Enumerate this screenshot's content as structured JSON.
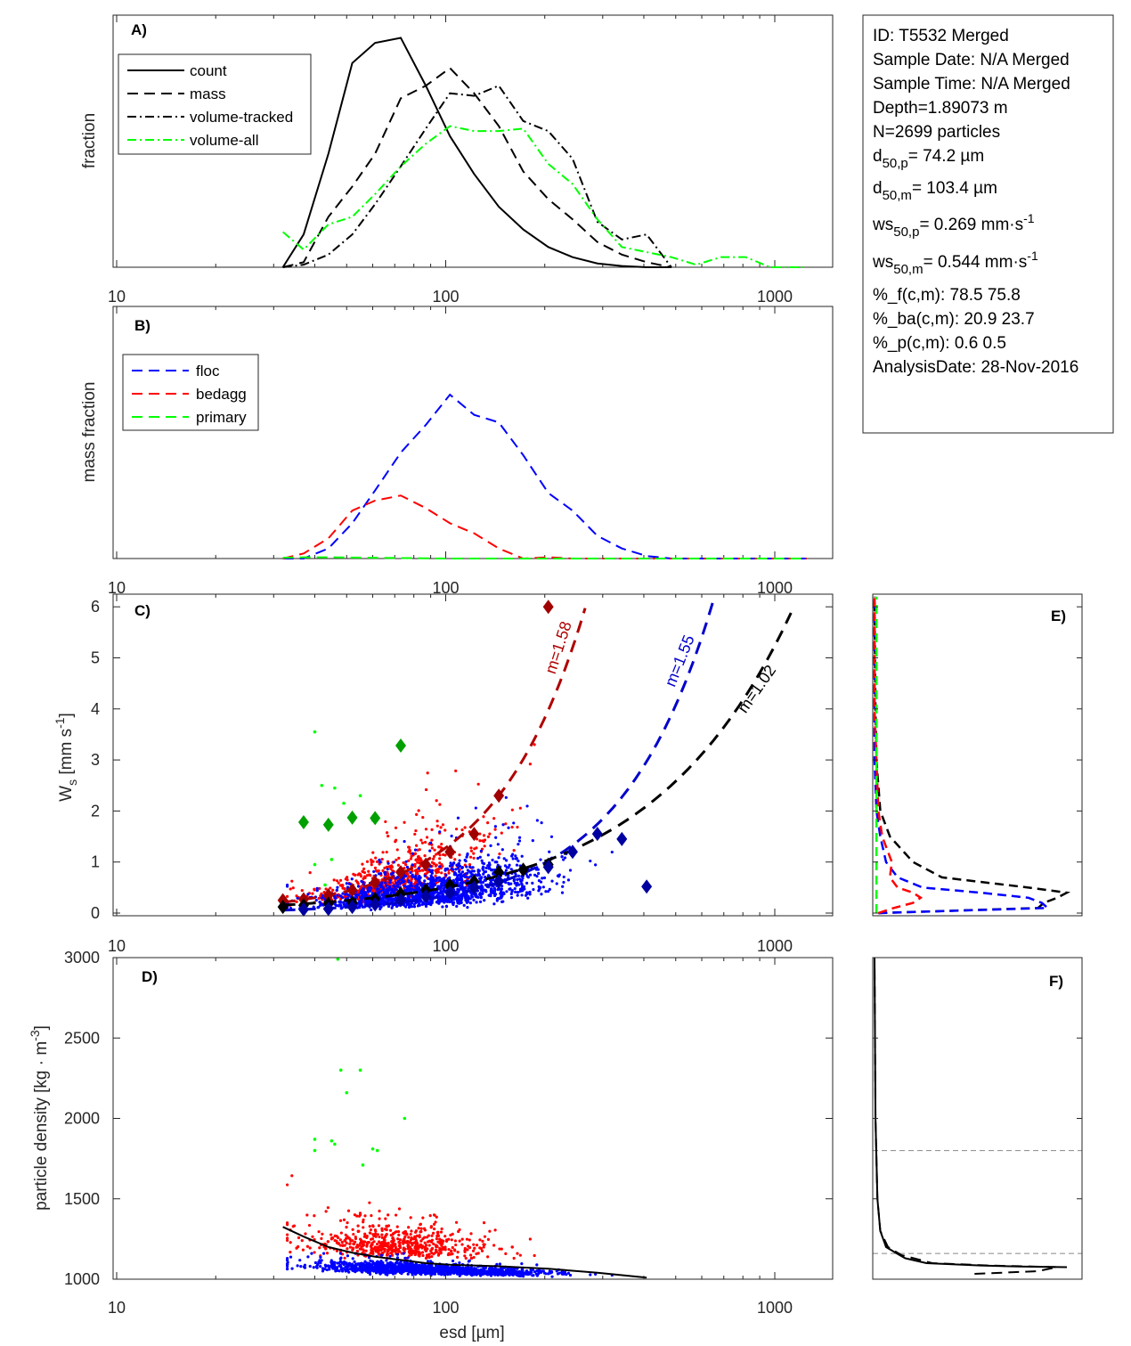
{
  "info_box": {
    "id": "ID: T5532 Merged",
    "sample_date": "Sample Date: N/A Merged",
    "sample_time": "Sample Time: N/A Merged",
    "depth": "Depth=1.89073 m",
    "n": "N=2699 particles",
    "d50p_label": "d",
    "d50p_sub": "50,p",
    "d50p_val": "=  74.2 µm",
    "d50m_label": "d",
    "d50m_sub": "50,m",
    "d50m_val": "= 103.4 µm",
    "ws50p_label": "ws",
    "ws50p_sub": "50,p",
    "ws50p_val": "= 0.269 mm·s",
    "ws50p_sup": "-1",
    "ws50m_label": "ws",
    "ws50m_sub": "50,m",
    "ws50m_val": "= 0.544 mm·s",
    "ws50m_sup": "-1",
    "pct_f": "%_f(c,m): 78.5 75.8",
    "pct_ba": "%_ba(c,m): 20.9 23.7",
    "pct_p": "%_p(c,m): 0.6 0.5",
    "analysis_date": "AnalysisDate: 28-Nov-2016"
  },
  "chart_data": [
    {
      "panel": "A)",
      "type": "line",
      "ylabel": "fraction",
      "xscale": "log",
      "xlim": [
        10,
        1500
      ],
      "xticks": [
        "10",
        "100",
        "1000"
      ],
      "legend_position": "top-left",
      "series": [
        {
          "name": "count",
          "color": "#000000",
          "dash": "solid",
          "x": [
            32,
            37,
            44,
            52,
            61,
            73,
            87,
            103,
            122,
            145,
            172,
            205,
            243,
            289,
            343,
            408,
            485
          ],
          "y": [
            0,
            0.13,
            0.45,
            0.81,
            0.89,
            0.91,
            0.72,
            0.52,
            0.37,
            0.24,
            0.15,
            0.08,
            0.04,
            0.015,
            0.005,
            0,
            0
          ]
        },
        {
          "name": "mass",
          "color": "#000000",
          "dash": "dashed",
          "x": [
            32,
            37,
            44,
            52,
            61,
            73,
            87,
            103,
            122,
            145,
            172,
            205,
            243,
            289,
            343,
            408,
            485
          ],
          "y": [
            0,
            0.02,
            0.2,
            0.32,
            0.45,
            0.67,
            0.72,
            0.79,
            0.69,
            0.56,
            0.38,
            0.27,
            0.19,
            0.1,
            0.05,
            0.02,
            0
          ]
        },
        {
          "name": "volume-tracked",
          "color": "#000000",
          "dash": "dashdot",
          "x": [
            32,
            37,
            44,
            52,
            61,
            73,
            87,
            103,
            122,
            145,
            172,
            205,
            243,
            289,
            343,
            408,
            485
          ],
          "y": [
            0,
            0.01,
            0.05,
            0.13,
            0.25,
            0.4,
            0.55,
            0.69,
            0.68,
            0.72,
            0.58,
            0.54,
            0.43,
            0.18,
            0.11,
            0.13,
            0
          ]
        },
        {
          "name": "volume-all",
          "color": "#00ff00",
          "dash": "dashdot",
          "x": [
            32,
            37,
            44,
            52,
            61,
            73,
            87,
            103,
            122,
            145,
            172,
            205,
            243,
            289,
            343,
            408,
            485,
            577,
            686,
            816,
            970,
            1150,
            1250
          ],
          "y": [
            0.14,
            0.07,
            0.17,
            0.2,
            0.29,
            0.4,
            0.49,
            0.56,
            0.54,
            0.54,
            0.55,
            0.41,
            0.33,
            0.19,
            0.08,
            0.06,
            0.04,
            0.01,
            0.04,
            0.04,
            0,
            0,
            0
          ]
        }
      ]
    },
    {
      "panel": "B)",
      "type": "line",
      "ylabel": "mass fraction",
      "xscale": "log",
      "xlim": [
        10,
        1500
      ],
      "xticks": [
        "10",
        "100",
        "1000"
      ],
      "legend_position": "top-left",
      "series": [
        {
          "name": "floc",
          "color": "#0000ff",
          "dash": "dashed",
          "x": [
            32,
            37,
            44,
            52,
            61,
            73,
            87,
            103,
            122,
            145,
            172,
            205,
            243,
            289,
            343,
            408,
            485,
            1250
          ],
          "y": [
            0,
            0,
            0.04,
            0.14,
            0.27,
            0.42,
            0.53,
            0.65,
            0.57,
            0.54,
            0.41,
            0.26,
            0.19,
            0.09,
            0.04,
            0.01,
            0,
            0
          ]
        },
        {
          "name": "bedagg",
          "color": "#ff0000",
          "dash": "dashed",
          "x": [
            32,
            37,
            44,
            52,
            61,
            73,
            87,
            103,
            122,
            145,
            172,
            205,
            243,
            1250
          ],
          "y": [
            0,
            0.02,
            0.08,
            0.19,
            0.23,
            0.25,
            0.2,
            0.14,
            0.1,
            0.04,
            0,
            0.005,
            0,
            0
          ]
        },
        {
          "name": "primary",
          "color": "#00ff00",
          "dash": "dashed",
          "x": [
            32,
            37,
            44,
            52,
            61,
            73,
            87,
            103,
            145,
            205,
            1250
          ],
          "y": [
            0.003,
            0.005,
            0.005,
            0.004,
            0.003,
            0.002,
            0.001,
            0,
            0,
            0,
            0
          ]
        }
      ]
    },
    {
      "panel": "C)",
      "type": "scatter",
      "ylabel": "W",
      "ylabel_sub": "s",
      "ylabel_unit": " [mm s",
      "ylabel_sup": "-1",
      "ylabel_end": "]",
      "xscale": "log",
      "xlim": [
        10,
        1500
      ],
      "ylim": [
        0,
        6.3
      ],
      "xticks": [
        "10",
        "100",
        "1000"
      ],
      "yticks": [
        "0",
        "1",
        "2",
        "3",
        "4",
        "5",
        "6"
      ],
      "fits": [
        {
          "label": "m=1.58",
          "color": "#b00000",
          "exponent": 1.58,
          "ref_d": 145,
          "ref_ws": 2.3,
          "d_range": [
            32,
            275
          ]
        },
        {
          "label": "m=1.55",
          "color": "#0000cc",
          "exponent": 1.55,
          "ref_d": 649,
          "ref_ws": 6.1,
          "d_range": [
            32,
            655
          ]
        },
        {
          "label": "m=1.02",
          "color": "#000000",
          "exponent": 1.02,
          "ref_d": 1180,
          "ref_ws": 6.2,
          "d_range": [
            32,
            1190
          ]
        }
      ],
      "bin_means": [
        {
          "name": "bedagg",
          "color": "#a00000",
          "x": [
            32,
            37,
            44,
            52,
            61,
            73,
            87,
            103,
            122,
            145,
            205
          ],
          "y": [
            0.25,
            0.27,
            0.35,
            0.45,
            0.6,
            0.8,
            0.95,
            1.2,
            1.55,
            2.3,
            6.0
          ]
        },
        {
          "name": "all",
          "color": "#000000",
          "x": [
            32,
            37,
            44,
            52,
            61,
            73,
            87,
            103,
            122,
            145,
            172,
            205
          ],
          "y": [
            0.12,
            0.15,
            0.18,
            0.2,
            0.28,
            0.38,
            0.45,
            0.55,
            0.62,
            0.8,
            0.85,
            0.95
          ]
        },
        {
          "name": "floc",
          "color": "#0000a0",
          "x": [
            37,
            44,
            52,
            61,
            73,
            87,
            103,
            122,
            145,
            205,
            243,
            289,
            343,
            408
          ],
          "y": [
            0.07,
            0.08,
            0.12,
            0.17,
            0.25,
            0.33,
            0.4,
            0.5,
            0.62,
            0.9,
            1.2,
            1.55,
            1.45,
            0.52
          ]
        },
        {
          "name": "primary",
          "color": "#00a000",
          "x": [
            37,
            44,
            52,
            61,
            73
          ],
          "y": [
            1.78,
            1.73,
            1.87,
            1.86,
            3.28
          ]
        }
      ],
      "primary_points": {
        "x": [
          40,
          42,
          46,
          40,
          45,
          49,
          43,
          52,
          55,
          60
        ],
        "y": [
          3.55,
          2.5,
          2.45,
          0.95,
          1.05,
          2.15,
          0.55,
          1.9,
          2.3,
          1.82
        ]
      },
      "clouds": {
        "floc_n": 1500,
        "bedagg_n": 600
      }
    },
    {
      "panel": "D)",
      "type": "scatter",
      "ylabel": "particle density [kg · m",
      "ylabel_sup": "-3",
      "ylabel_end": "]",
      "xlabel": "esd [µm]",
      "xscale": "log",
      "xlim": [
        10,
        1500
      ],
      "ylim": [
        1000,
        3000
      ],
      "xticks": [
        "10",
        "100",
        "1000"
      ],
      "yticks": [
        "1000",
        "1500",
        "2000",
        "2500",
        "3000"
      ],
      "mean_line": {
        "x": [
          32,
          37,
          44,
          52,
          61,
          73,
          87,
          103,
          122,
          145,
          205,
          289,
          408
        ],
        "y": [
          1325,
          1265,
          1200,
          1165,
          1140,
          1120,
          1100,
          1090,
          1085,
          1080,
          1065,
          1040,
          1010
        ]
      },
      "primary_points": {
        "x": [
          47,
          48,
          55,
          50,
          75,
          40,
          45,
          46,
          60,
          62,
          40,
          56
        ],
        "y": [
          2990,
          2300,
          2300,
          2160,
          2000,
          1870,
          1860,
          1840,
          1810,
          1800,
          1800,
          1710
        ]
      }
    },
    {
      "panel": "E)",
      "type": "line",
      "orientation": "vertical-profile",
      "ylim": [
        0,
        6.3
      ],
      "series": [
        {
          "name": "all",
          "color": "#000000",
          "ws": [
            0,
            0.1,
            0.2,
            0.3,
            0.4,
            0.5,
            0.7,
            1.0,
            1.5,
            2,
            3,
            4,
            6.2
          ],
          "fraction": [
            0.02,
            0.85,
            0.88,
            0.95,
            1.0,
            0.8,
            0.35,
            0.2,
            0.08,
            0.03,
            0.01,
            0.005,
            0
          ]
        },
        {
          "name": "floc",
          "color": "#0000ff",
          "ws": [
            0,
            0.1,
            0.2,
            0.3,
            0.4,
            0.5,
            0.7,
            1.0,
            1.5,
            2,
            3,
            4,
            6.2
          ],
          "fraction": [
            0.02,
            0.9,
            0.87,
            0.8,
            0.55,
            0.25,
            0.12,
            0.06,
            0.03,
            0.01,
            0,
            0,
            0
          ]
        },
        {
          "name": "bedagg",
          "color": "#ff0000",
          "ws": [
            0,
            0.1,
            0.2,
            0.3,
            0.4,
            0.5,
            0.7,
            1.0,
            1.5,
            2,
            3,
            4,
            6.2
          ],
          "fraction": [
            0.02,
            0.1,
            0.2,
            0.24,
            0.2,
            0.12,
            0.08,
            0.09,
            0.04,
            0.02,
            0.01,
            0,
            0
          ]
        },
        {
          "name": "primary",
          "color": "#00ff00",
          "ws": [
            0,
            1,
            2,
            3,
            4,
            6.2
          ],
          "fraction": [
            0.01,
            0.01,
            0.01,
            0.01,
            0.01,
            0.01
          ]
        }
      ]
    },
    {
      "panel": "F)",
      "type": "line",
      "orientation": "vertical-profile",
      "ylim": [
        1000,
        3000
      ],
      "reference_lines": [
        1800,
        1160
      ],
      "series": [
        {
          "name": "count",
          "dash": "solid",
          "density": [
            1075,
            1080,
            1085,
            1100,
            1130,
            1150,
            1200,
            1300,
            1500,
            2000,
            3000
          ],
          "fraction": [
            1.0,
            0.7,
            0.55,
            0.27,
            0.16,
            0.13,
            0.06,
            0.03,
            0.015,
            0.005,
            0
          ]
        },
        {
          "name": "mass",
          "dash": "dashed",
          "density": [
            1033,
            1050,
            1075,
            1085,
            1100,
            1150,
            1200,
            1300,
            1500,
            2000,
            3000
          ],
          "fraction": [
            0.52,
            0.85,
            0.95,
            0.6,
            0.3,
            0.14,
            0.07,
            0.03,
            0.015,
            0.005,
            0
          ]
        }
      ]
    }
  ]
}
